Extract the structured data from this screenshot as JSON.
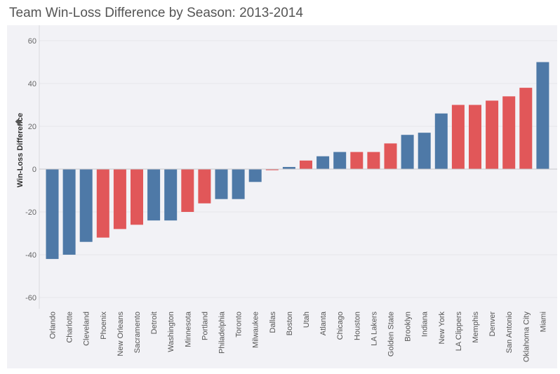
{
  "chart_data": {
    "type": "bar",
    "title": "Team Win-Loss Difference by Season: 2013-2014",
    "xlabel": "",
    "ylabel": "Win-Loss Difference",
    "ylim": [
      -65,
      62
    ],
    "yticks": [
      60,
      40,
      20,
      0,
      -20,
      -40,
      -60
    ],
    "grid": true,
    "pin_icon": "pin-icon",
    "colors": {
      "blue": "#4e79a7",
      "red": "#e15759",
      "gridline": "#e6e6ea",
      "zeroline": "#c8c8cc"
    },
    "categories": [
      "Orlando",
      "Charlotte",
      "Cleveland",
      "Phoenix",
      "New Orleans",
      "Sacramento",
      "Detroit",
      "Washington",
      "Minnesota",
      "Portland",
      "Philadelphia",
      "Toronto",
      "Milwaukee",
      "Dallas",
      "Boston",
      "Utah",
      "Atlanta",
      "Chicago",
      "Houston",
      "LA Lakers",
      "Golden State",
      "Brooklyn",
      "Indiana",
      "New York",
      "LA Clippers",
      "Memphis",
      "Denver",
      "San Antonio",
      "Oklahoma City",
      "Miami"
    ],
    "values": [
      -42,
      -40,
      -34,
      -32,
      -28,
      -26,
      -24,
      -24,
      -20,
      -16,
      -14,
      -14,
      -6,
      -0.5,
      1,
      4,
      6,
      8,
      8,
      8,
      12,
      16,
      17,
      26,
      30,
      30,
      32,
      34,
      38,
      50
    ],
    "bar_colors": [
      "blue",
      "blue",
      "blue",
      "red",
      "red",
      "red",
      "blue",
      "blue",
      "red",
      "red",
      "blue",
      "blue",
      "blue",
      "red",
      "blue",
      "red",
      "blue",
      "blue",
      "red",
      "red",
      "red",
      "blue",
      "blue",
      "blue",
      "red",
      "red",
      "red",
      "red",
      "red",
      "blue"
    ]
  }
}
